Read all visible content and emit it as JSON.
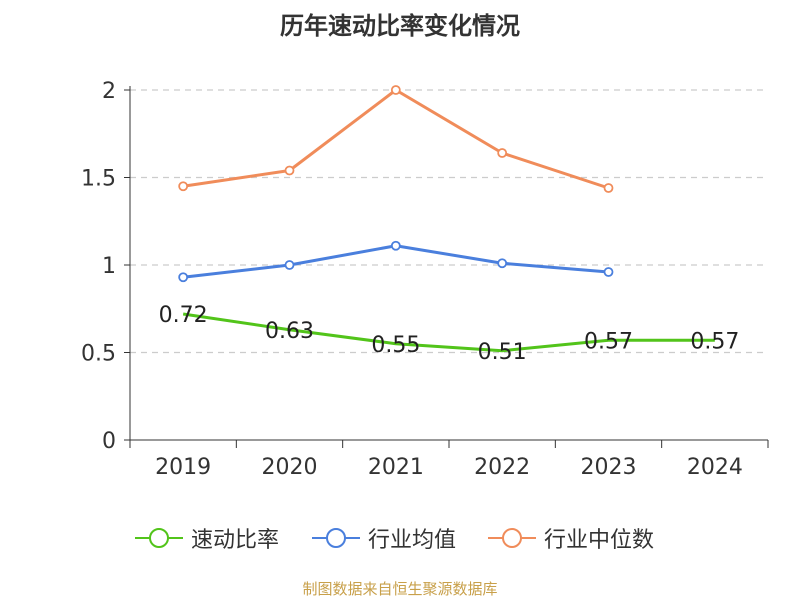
{
  "chart_data": {
    "type": "line",
    "title": "历年速动比率变化情况",
    "categories": [
      "2019",
      "2020",
      "2021",
      "2022",
      "2023",
      "2024"
    ],
    "yticks": [
      "0",
      "0.5",
      "1",
      "1.5",
      "2"
    ],
    "ylim": [
      0,
      2
    ],
    "grid": true,
    "legend_position": "bottom",
    "series": [
      {
        "name": "速动比率",
        "color": "#52c41a",
        "values": [
          0.72,
          0.63,
          0.55,
          0.51,
          0.57,
          0.57
        ],
        "labels": [
          "0.72",
          "0.63",
          "0.55",
          "0.51",
          "0.57",
          "0.57"
        ]
      },
      {
        "name": "行业均值",
        "color": "#4a7fdd",
        "values": [
          0.93,
          1.0,
          1.11,
          1.01,
          0.96,
          null
        ]
      },
      {
        "name": "行业中位数",
        "color": "#f08c5a",
        "values": [
          1.45,
          1.54,
          2.0,
          1.64,
          1.44,
          null
        ]
      }
    ]
  },
  "source": "制图数据来自恒生聚源数据库"
}
